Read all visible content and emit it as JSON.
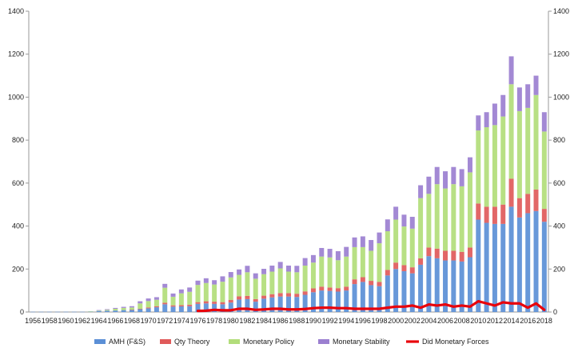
{
  "chart_data": {
    "type": "bar",
    "stacked": true,
    "title": "",
    "xlabel": "",
    "ylabel": "",
    "ylim": [
      0,
      1400
    ],
    "yticks": [
      0,
      200,
      400,
      600,
      800,
      1000,
      1200,
      1400
    ],
    "y2ticks": [
      0,
      200,
      400,
      600,
      800,
      1000,
      1200,
      1400
    ],
    "grid": false,
    "legend": "bottom",
    "categories": [
      "1956",
      "1957",
      "1958",
      "1959",
      "1960",
      "1961",
      "1962",
      "1963",
      "1964",
      "1965",
      "1966",
      "1967",
      "1968",
      "1969",
      "1970",
      "1971",
      "1972",
      "1973",
      "1974",
      "1975",
      "1976",
      "1977",
      "1978",
      "1979",
      "1980",
      "1981",
      "1982",
      "1983",
      "1984",
      "1985",
      "1986",
      "1987",
      "1988",
      "1989",
      "1990",
      "1991",
      "1992",
      "1993",
      "1994",
      "1995",
      "1996",
      "1997",
      "1998",
      "1999",
      "2000",
      "2001",
      "2002",
      "2003",
      "2004",
      "2005",
      "2006",
      "2007",
      "2008",
      "2009",
      "2010",
      "2011",
      "2012",
      "2013",
      "2014",
      "2015",
      "2016",
      "2017",
      "2018"
    ],
    "xtick_labels": [
      "1956",
      "1958",
      "1960",
      "1962",
      "1964",
      "1966",
      "1968",
      "1970",
      "1972",
      "1974",
      "1976",
      "1978",
      "1980",
      "1982",
      "1984",
      "1986",
      "1988",
      "1990",
      "1992",
      "1994",
      "1996",
      "1998",
      "2000",
      "2002",
      "2004",
      "2006",
      "2008",
      "2010",
      "2012",
      "2014",
      "2016",
      "2018"
    ],
    "series": [
      {
        "name": "AMH (F&S)",
        "color": "#5b8fd6",
        "values": [
          1,
          1,
          1,
          1,
          1,
          1,
          1,
          2,
          5,
          6,
          7,
          9,
          10,
          13,
          17,
          22,
          36,
          25,
          26,
          27,
          38,
          40,
          38,
          36,
          44,
          58,
          60,
          48,
          62,
          68,
          72,
          72,
          70,
          80,
          92,
          100,
          98,
          95,
          100,
          130,
          140,
          125,
          120,
          170,
          200,
          190,
          180,
          220,
          260,
          250,
          240,
          240,
          235,
          255,
          430,
          415,
          410,
          410,
          490,
          440,
          460,
          470,
          420
        ]
      },
      {
        "name": "Qty Theory",
        "color": "#e05a5a",
        "values": [
          0,
          0,
          0,
          0,
          0,
          0,
          0,
          0,
          0,
          0,
          0,
          0,
          1,
          2,
          4,
          5,
          7,
          6,
          6,
          7,
          8,
          10,
          10,
          10,
          12,
          15,
          15,
          12,
          14,
          15,
          16,
          16,
          15,
          16,
          18,
          18,
          16,
          16,
          18,
          22,
          22,
          20,
          20,
          26,
          30,
          28,
          28,
          30,
          40,
          45,
          45,
          45,
          45,
          45,
          75,
          75,
          80,
          90,
          130,
          90,
          90,
          100,
          60
        ]
      },
      {
        "name": "Monetary Policy",
        "color": "#b2dd7a",
        "values": [
          0,
          0,
          0,
          0,
          0,
          0,
          0,
          1,
          2,
          4,
          8,
          10,
          10,
          25,
          30,
          30,
          70,
          40,
          55,
          60,
          80,
          85,
          80,
          95,
          105,
          100,
          110,
          95,
          100,
          105,
          115,
          100,
          100,
          120,
          120,
          140,
          140,
          130,
          140,
          150,
          140,
          140,
          180,
          180,
          200,
          180,
          180,
          280,
          250,
          300,
          290,
          310,
          305,
          350,
          340,
          370,
          380,
          410,
          440,
          405,
          400,
          440,
          360
        ]
      },
      {
        "name": "Monetary Stability",
        "color": "#9b7fd0",
        "values": [
          0,
          0,
          0,
          0,
          0,
          0,
          0,
          0,
          2,
          3,
          4,
          5,
          6,
          10,
          12,
          12,
          18,
          15,
          18,
          20,
          20,
          22,
          20,
          25,
          25,
          25,
          30,
          25,
          25,
          28,
          30,
          28,
          30,
          35,
          35,
          40,
          40,
          42,
          45,
          45,
          50,
          50,
          50,
          55,
          60,
          55,
          55,
          60,
          80,
          80,
          80,
          80,
          80,
          70,
          70,
          70,
          100,
          100,
          130,
          110,
          110,
          90,
          90
        ]
      }
    ],
    "line": {
      "name": "Did Monetary Forces",
      "color": "#e8000b",
      "values": [
        0,
        0,
        0,
        0,
        0,
        0,
        0,
        0,
        0,
        0,
        0,
        0,
        0,
        0,
        0,
        0,
        0,
        0,
        0,
        0,
        5,
        6,
        10,
        8,
        8,
        15,
        15,
        10,
        12,
        15,
        15,
        12,
        12,
        14,
        18,
        20,
        20,
        18,
        18,
        15,
        15,
        15,
        15,
        20,
        25,
        25,
        30,
        20,
        35,
        30,
        35,
        25,
        30,
        25,
        50,
        40,
        30,
        45,
        40,
        40,
        20,
        40,
        10
      ]
    }
  }
}
